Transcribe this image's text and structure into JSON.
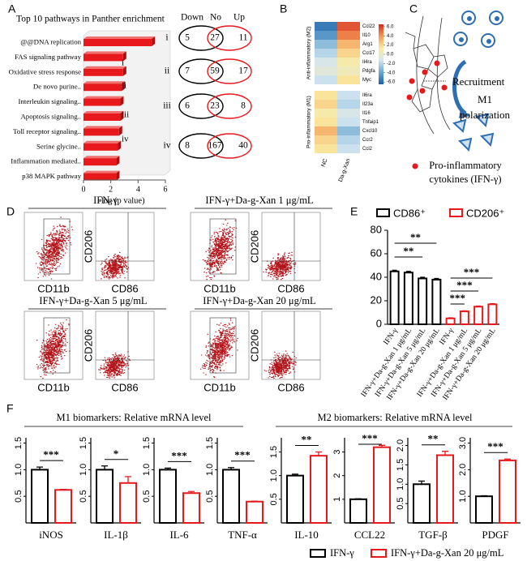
{
  "panel_labels": [
    "A",
    "B",
    "C",
    "D",
    "E",
    "F"
  ],
  "chart_data": [
    {
      "type": "hbar",
      "title": "Top 10 pathways in Panther enrichment",
      "categories": [
        "@@DNA replication",
        "FAS signaling pathway",
        "Oxidative stress response",
        "De novo purine..",
        "Interleukin signaling..",
        "Apoptosis signaling..",
        "Toll receptor signaling..",
        "Serine glycine..",
        "Inflammation mediated..",
        "p38 MAPK pathway"
      ],
      "values": [
        5.0,
        2.9,
        2.9,
        2.8,
        2.7,
        2.7,
        2.6,
        2.5,
        2.4,
        2.4
      ],
      "color": "#e8191c",
      "xlabel": "-log (p value)",
      "xlim": [
        0,
        6
      ],
      "xticks": [
        0,
        2,
        4,
        6
      ],
      "annotations": [
        "i",
        "ii",
        "iii",
        "iv"
      ]
    },
    {
      "type": "heatmap",
      "columns": [
        "NC",
        "Da-g-Xan"
      ],
      "groups": [
        {
          "label": "Anti-inflammatory (M2)",
          "rows": [
            "Ccl22",
            "Il10",
            "Arg1",
            "Ccl17",
            "Il4ra",
            "Pdgfa",
            "Myc"
          ],
          "values": [
            [
              -5.5,
              5.5
            ],
            [
              -4.5,
              4.5
            ],
            [
              -3,
              3
            ],
            [
              -2,
              2
            ],
            [
              -1,
              1
            ],
            [
              -0.5,
              0.5
            ],
            [
              -1.5,
              1.5
            ]
          ]
        },
        {
          "label": "Pro-inflammatory (M1)",
          "rows": [
            "Il6ra",
            "Il23a",
            "Il16",
            "Tnfaip1",
            "Cxcl10",
            "Ccr2",
            "Ccl2"
          ],
          "values": [
            [
              1.5,
              -1.5
            ],
            [
              2,
              -2
            ],
            [
              1,
              -1
            ],
            [
              1.5,
              -1.5
            ],
            [
              3,
              -3
            ],
            [
              2,
              -2
            ],
            [
              1.5,
              -1.5
            ]
          ]
        }
      ],
      "clim": [
        -6.5,
        6.5
      ],
      "cticks": [
        {
          "value": 6,
          "label": "6.0"
        },
        {
          "value": 4,
          "label": "4.0"
        },
        {
          "value": 2,
          "label": "2.0"
        },
        {
          "value": 0,
          "label": "0.0"
        },
        {
          "value": -2,
          "label": "-2.0"
        },
        {
          "value": -4,
          "label": "-4.0"
        },
        {
          "value": -6,
          "label": "-6.0"
        }
      ],
      "colors": [
        "#1b5fa6",
        "#6aa8d2",
        "#d3e6f0",
        "#fbeaa2",
        "#f49a55",
        "#d42a1e"
      ]
    },
    {
      "type": "bar",
      "categories": [
        "IFN-γ",
        "IFN-γ+Da-g-Xan 1 μg/mL",
        "IFN-γ+Da-g-Xan 5 μg/mL",
        "IFN-γ+Da-g-Xan 20 μg/mL",
        "IFN-γ",
        "IFN-γ+Da-g-Xan 1 μg/mL",
        "IFN-γ+Da-g-Xan 5 μg/mL",
        "IFN-γ+Da-g-Xan 20 μg/mL"
      ],
      "series": [
        {
          "name": "CD86⁺",
          "color": "#000000",
          "values": [
            45,
            44,
            39,
            38,
            null,
            null,
            null,
            null
          ],
          "errors": [
            1,
            1,
            1,
            1,
            null,
            null,
            null,
            null
          ]
        },
        {
          "name": "CD206⁺",
          "color": "#e8191c",
          "values": [
            null,
            null,
            null,
            null,
            5,
            11,
            15,
            17
          ],
          "errors": [
            null,
            null,
            null,
            null,
            0.5,
            0.5,
            0.5,
            0.5
          ]
        }
      ],
      "ylim": [
        0,
        80
      ],
      "yticks": [
        0,
        20,
        40,
        60,
        80
      ],
      "annotations": [
        "**",
        "**",
        "***",
        "***",
        "***"
      ]
    },
    {
      "type": "pair",
      "xlabel": "iNOS",
      "values": [
        1.0,
        0.62
      ],
      "errors": [
        0.05,
        0.01
      ],
      "ylim": [
        0,
        1.6
      ],
      "yticks": [
        0.5,
        {
          "value": 1,
          "label": "1.0"
        },
        1.5
      ],
      "annotation": "***"
    },
    {
      "type": "pair",
      "xlabel": "IL-1β",
      "values": [
        1.0,
        0.75
      ],
      "errors": [
        0.07,
        0.12
      ],
      "ylim": [
        0,
        1.6
      ],
      "yticks": [
        0.5,
        {
          "value": 1,
          "label": "1.0"
        },
        1.5
      ],
      "annotation": "*"
    },
    {
      "type": "pair",
      "xlabel": "IL-6",
      "values": [
        1.0,
        0.56
      ],
      "errors": [
        0.03,
        0.03
      ],
      "ylim": [
        0,
        1.6
      ],
      "yticks": [
        0.5,
        {
          "value": 1,
          "label": "1.0"
        },
        1.5
      ],
      "annotation": "***"
    },
    {
      "type": "pair",
      "xlabel": "TNF-α",
      "values": [
        1.0,
        0.4
      ],
      "errors": [
        0.04,
        0.01
      ],
      "ylim": [
        0,
        1.6
      ],
      "yticks": [
        0.5,
        {
          "value": 1,
          "label": "1.0"
        },
        1.5
      ],
      "annotation": "***"
    },
    {
      "type": "pair",
      "xlabel": "IL-10",
      "values": [
        1.0,
        1.42
      ],
      "errors": [
        0.03,
        0.08
      ],
      "ylim": [
        0,
        1.8
      ],
      "yticks": [
        0.5,
        {
          "value": 1,
          "label": "1.0"
        },
        1.5
      ],
      "annotation": "**"
    },
    {
      "type": "pair",
      "xlabel": "CCL22",
      "values": [
        1.0,
        3.2
      ],
      "errors": [
        0.02,
        0.08
      ],
      "ylim": [
        0,
        3.6
      ],
      "yticks": [
        1,
        2,
        3
      ],
      "annotation": "***"
    },
    {
      "type": "pair",
      "xlabel": "TGF-β",
      "values": [
        1.0,
        1.75
      ],
      "errors": [
        0.08,
        0.1
      ],
      "ylim": [
        0,
        2.2
      ],
      "yticks": [
        0.5,
        {
          "value": 1,
          "label": "1.0"
        },
        1.5,
        {
          "value": 2,
          "label": "2.0"
        }
      ],
      "annotation": "**"
    },
    {
      "type": "pair",
      "xlabel": "PDGF",
      "values": [
        1.0,
        2.35
      ],
      "errors": [
        0.02,
        0.05
      ],
      "ylim": [
        0,
        3.2
      ],
      "yticks": [
        {
          "value": 1,
          "label": "1.0"
        },
        {
          "value": 2,
          "label": "2.0"
        },
        {
          "value": 3,
          "label": "3.0"
        }
      ],
      "annotation": "***"
    }
  ],
  "venn": {
    "headers": [
      "Down",
      "No",
      "Up"
    ],
    "rows": [
      {
        "label": "i",
        "values": [
          5,
          27,
          11
        ]
      },
      {
        "label": "ii",
        "values": [
          7,
          59,
          17
        ]
      },
      {
        "label": "iii",
        "values": [
          6,
          23,
          8
        ]
      },
      {
        "label": "iv",
        "values": [
          8,
          167,
          40
        ]
      }
    ]
  },
  "diagram_c": {
    "labels": [
      "Recruitment",
      "M1",
      "polarization"
    ],
    "legend": [
      "Pro-inflammatory",
      "cytokines (IFN-γ)"
    ]
  },
  "flow": {
    "panels": [
      {
        "title": "IFN-γ",
        "x_labels": [
          "CD11b",
          "CD86"
        ],
        "y_label": "CD206"
      },
      {
        "title": "IFN-γ+Da-g-Xan 1 μg/mL",
        "x_labels": [
          "CD11b",
          "CD86"
        ],
        "y_label": "CD206"
      },
      {
        "title": "IFN-γ+Da-g-Xan 5 μg/mL",
        "x_labels": [
          "CD11b",
          "CD86"
        ],
        "y_label": "CD206"
      },
      {
        "title": "IFN-γ+Da-g-Xan 20 μg/mL",
        "x_labels": [
          "CD11b",
          "CD86"
        ],
        "y_label": "CD206"
      }
    ]
  },
  "f_titles": [
    "M1 biomarkers: Relative mRNA level",
    "M2 biomarkers: Relative mRNA level"
  ],
  "f_legend": [
    {
      "name": "IFN-γ",
      "color": "#000000"
    },
    {
      "name": "IFN-γ+Da-g-Xan 20 μg/mL",
      "color": "#e8191c"
    }
  ]
}
